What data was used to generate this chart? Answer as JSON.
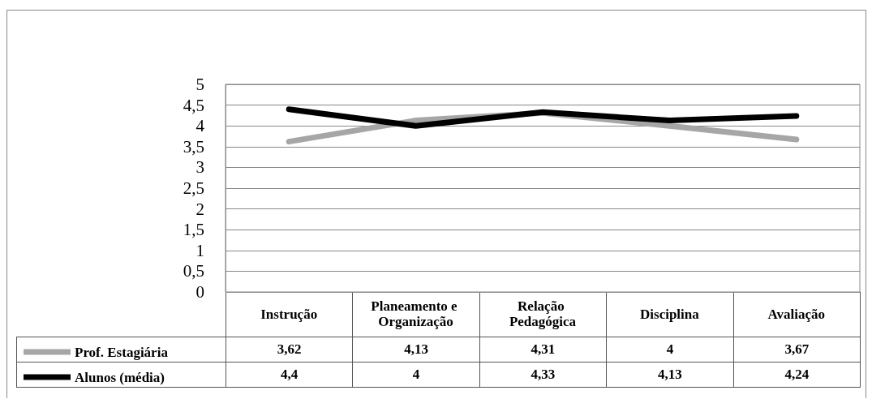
{
  "chart_data": {
    "type": "line",
    "categories": [
      "Instrução",
      "Planeamento e Organização",
      "Relação Pedagógica",
      "Disciplina",
      "Avaliação"
    ],
    "series": [
      {
        "name": "Prof. Estagiária",
        "color": "#a6a6a6",
        "values": [
          3.62,
          4.13,
          4.31,
          4,
          3.67
        ],
        "value_labels": [
          "3,62",
          "4,13",
          "4,31",
          "4",
          "3,67"
        ]
      },
      {
        "name": "Alunos (média)",
        "color": "#000000",
        "values": [
          4.4,
          4,
          4.33,
          4.13,
          4.24
        ],
        "value_labels": [
          "4,4",
          "4",
          "4,33",
          "4,13",
          "4,24"
        ]
      }
    ],
    "ylim": [
      0,
      5
    ],
    "yticks": [
      0,
      {
        "value": 0.5,
        "label": "0,5"
      },
      1,
      {
        "value": 1.5,
        "label": "1,5"
      },
      2,
      {
        "value": 2.5,
        "label": "2,5"
      },
      3,
      {
        "value": 3.5,
        "label": "3,5"
      },
      4,
      {
        "value": 4.5,
        "label": "4,5"
      },
      5
    ],
    "grid": "y",
    "legend": "bottom",
    "marker": "none",
    "line_style": "solid"
  }
}
